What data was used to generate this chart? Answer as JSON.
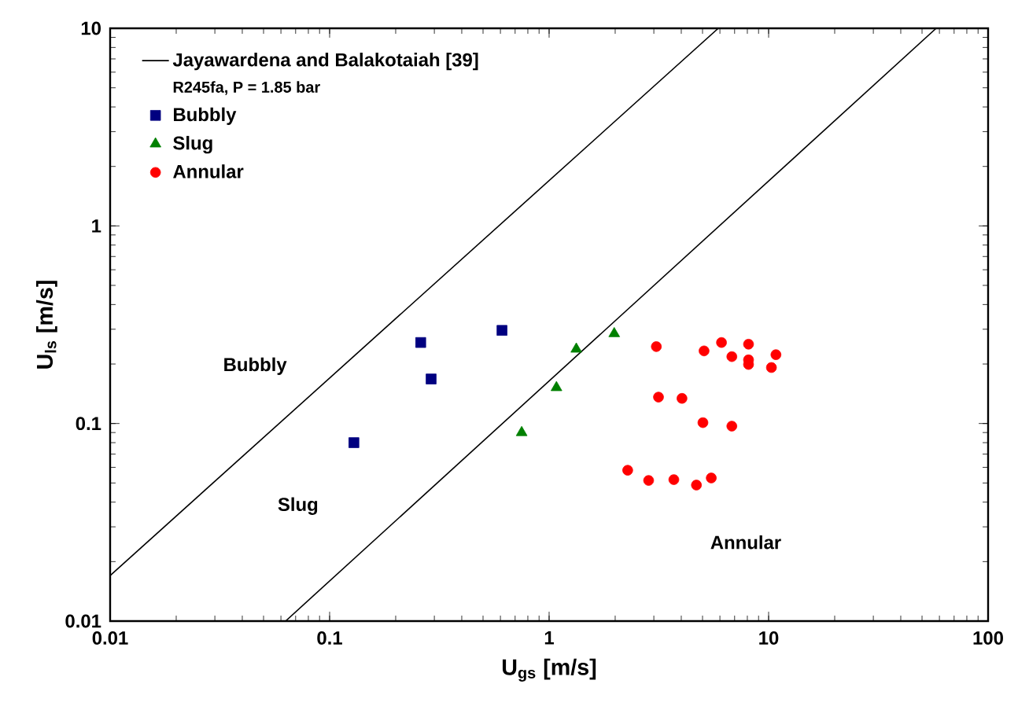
{
  "chart_data": {
    "type": "scatter",
    "log": "xy",
    "xlabel": "U$_{gs}$ [m/s]",
    "ylabel": "U$_{ls}$ [m/s]",
    "xlim": [
      0.01,
      100
    ],
    "ylim": [
      0.01,
      10
    ],
    "xticks": [
      0.01,
      0.1,
      1,
      10,
      100
    ],
    "yticks": [
      0.01,
      0.1,
      1,
      10
    ],
    "legend": "top left",
    "series": [
      {
        "name": "Jayawardena and Balakotaiah [39]",
        "type": "line",
        "color": "#000000",
        "marker": "none",
        "line_style": "solid",
        "x": [
          0.01,
          5.9
        ],
        "values": [
          0.017,
          10
        ]
      },
      {
        "type": "line",
        "color": "#000000",
        "marker": "none",
        "line_style": "solid",
        "x": [
          0.063,
          58
        ],
        "values": [
          0.01,
          10
        ]
      },
      {
        "name": "Bubbly",
        "color": "#000080",
        "marker": "square",
        "x": [
          0.129,
          0.26,
          0.29,
          0.61
        ],
        "values": [
          0.08,
          0.257,
          0.168,
          0.296
        ]
      },
      {
        "name": "Slug",
        "color": "#008000",
        "marker": "triangle",
        "x": [
          0.75,
          1.08,
          1.33,
          1.98
        ],
        "values": [
          0.09,
          0.152,
          0.238,
          0.285
        ]
      },
      {
        "name": "Annular",
        "color": "#ff0000",
        "marker": "circle",
        "x": [
          3.08,
          5.08,
          6.1,
          8.1,
          6.8,
          8.1,
          8.1,
          10.8,
          10.3,
          3.15,
          4.03,
          5.02,
          6.8,
          2.28,
          2.84,
          3.7,
          4.69,
          5.48
        ],
        "values": [
          0.245,
          0.233,
          0.257,
          0.252,
          0.218,
          0.21,
          0.199,
          0.223,
          0.192,
          0.136,
          0.134,
          0.101,
          0.097,
          0.058,
          0.0515,
          0.052,
          0.0488,
          0.053
        ]
      }
    ],
    "annotations": [
      "R245fa, P = 1.85 bar",
      "Bubbly",
      "Slug",
      "Annular"
    ]
  }
}
